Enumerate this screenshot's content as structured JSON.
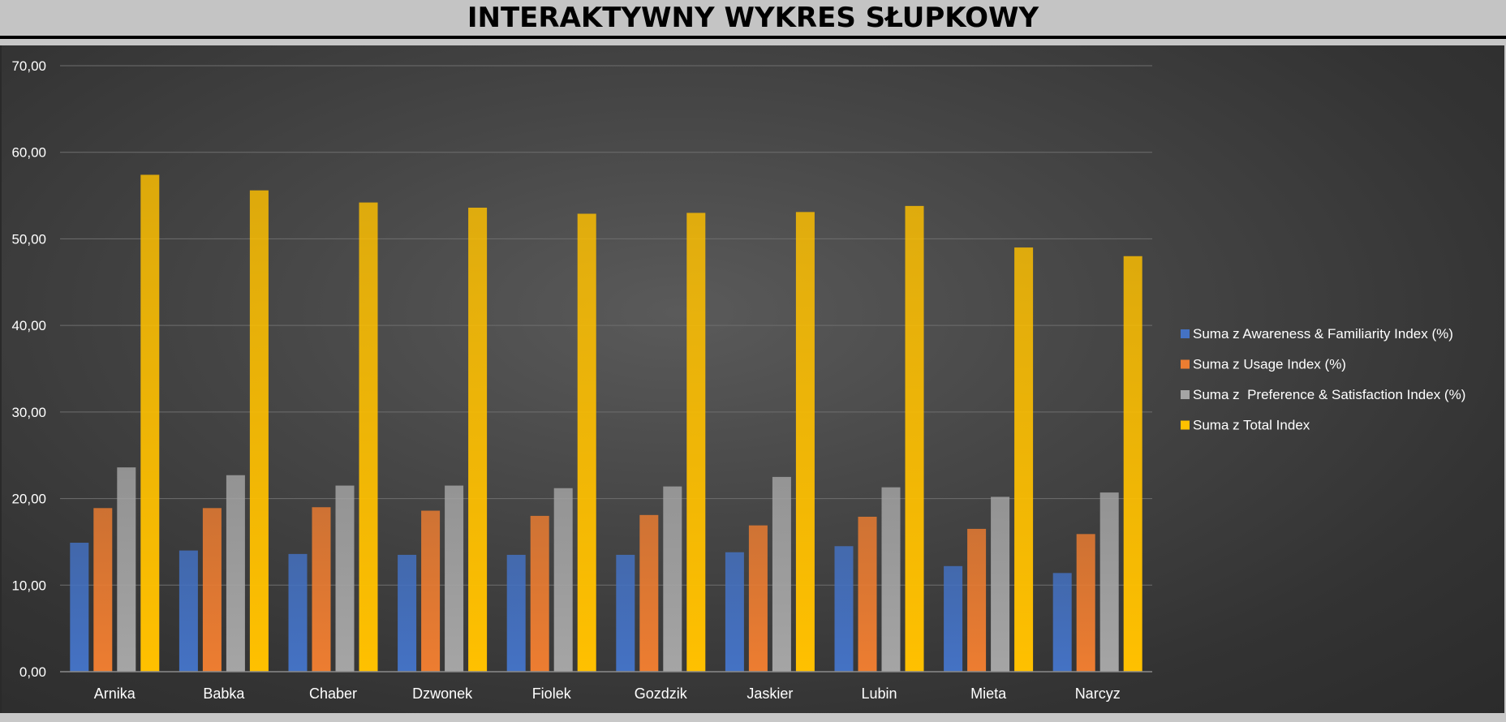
{
  "page": {
    "title": "INTERAKTYWNY WYKRES SŁUPKOWY"
  },
  "chart_data": {
    "type": "bar",
    "title": "",
    "xlabel": "",
    "ylabel": "",
    "ylim": [
      0,
      70
    ],
    "ytick_step": 10,
    "ytick_labels": [
      "0,00",
      "10,00",
      "20,00",
      "30,00",
      "40,00",
      "50,00",
      "60,00",
      "70,00"
    ],
    "grid": true,
    "legend_position": "right",
    "categories": [
      "Arnika",
      "Babka",
      "Chaber",
      "Dzwonek",
      "Fiolek",
      "Gozdzik",
      "Jaskier",
      "Lubin",
      "Mieta",
      "Narcyz"
    ],
    "series": [
      {
        "name": "Suma z Awareness & Familiarity Index (%)",
        "color": "#4472c4",
        "values": [
          14.9,
          14.0,
          13.6,
          13.5,
          13.5,
          13.5,
          13.8,
          14.5,
          12.2,
          11.4
        ]
      },
      {
        "name": "Suma z Usage Index (%)",
        "color": "#ed7d31",
        "values": [
          18.9,
          18.9,
          19.0,
          18.6,
          18.0,
          18.1,
          16.9,
          17.9,
          16.5,
          15.9
        ]
      },
      {
        "name": "Suma z  Preference & Satisfaction Index (%)",
        "color": "#a5a5a5",
        "values": [
          23.6,
          22.7,
          21.5,
          21.5,
          21.2,
          21.4,
          22.5,
          21.3,
          20.2,
          20.7
        ]
      },
      {
        "name": "Suma z Total Index",
        "color": "#ffc000",
        "values": [
          57.4,
          55.6,
          54.2,
          53.6,
          52.9,
          53.0,
          53.1,
          53.8,
          49.0,
          48.0
        ]
      }
    ]
  }
}
